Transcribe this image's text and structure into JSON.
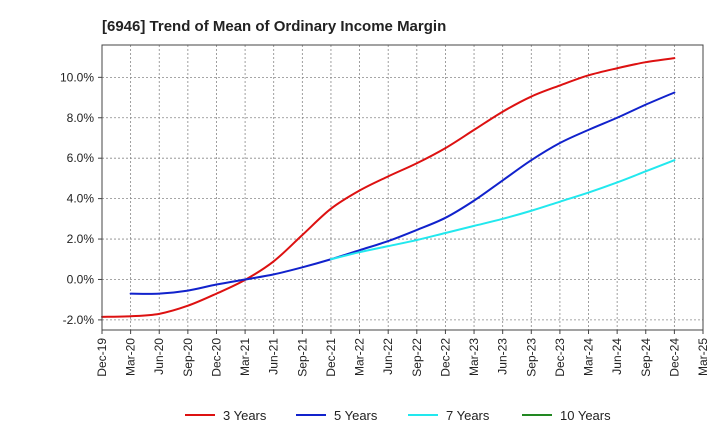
{
  "chart_data": {
    "type": "line",
    "title": "[6946]  Trend of Mean of Ordinary Income Margin",
    "xlabel": "",
    "ylabel": "",
    "ylim": [
      -2.5,
      11.6
    ],
    "grid": true,
    "legend_position": "bottom",
    "x": [
      "Dec-19",
      "Mar-20",
      "Jun-20",
      "Sep-20",
      "Dec-20",
      "Mar-21",
      "Jun-21",
      "Sep-21",
      "Dec-21",
      "Mar-22",
      "Jun-22",
      "Sep-22",
      "Dec-22",
      "Mar-23",
      "Jun-23",
      "Sep-23",
      "Dec-23",
      "Mar-24",
      "Jun-24",
      "Sep-24",
      "Dec-24",
      "Mar-25"
    ],
    "y_ticks": [
      -2.0,
      0.0,
      2.0,
      4.0,
      6.0,
      8.0,
      10.0
    ],
    "y_tick_labels": [
      "-2.0%",
      "0.0%",
      "2.0%",
      "4.0%",
      "6.0%",
      "8.0%",
      "10.0%"
    ],
    "series": [
      {
        "name": "3 Years",
        "color": "#dd1111",
        "values": [
          -1.85,
          -1.82,
          -1.7,
          -1.3,
          -0.7,
          -0.02,
          0.9,
          2.2,
          3.5,
          4.4,
          5.1,
          5.75,
          6.5,
          7.4,
          8.3,
          9.05,
          9.6,
          10.1,
          10.45,
          10.75,
          10.95,
          null
        ]
      },
      {
        "name": "5 Years",
        "color": "#1122cc",
        "values": [
          null,
          -0.7,
          -0.7,
          -0.55,
          -0.25,
          0.0,
          0.25,
          0.6,
          1.0,
          1.45,
          1.9,
          2.45,
          3.05,
          3.9,
          4.9,
          5.9,
          6.75,
          7.4,
          8.0,
          8.65,
          9.25,
          null
        ]
      },
      {
        "name": "7 Years",
        "color": "#22e8ee",
        "values": [
          null,
          null,
          null,
          null,
          null,
          null,
          null,
          null,
          1.0,
          1.35,
          1.65,
          1.95,
          2.3,
          2.65,
          3.0,
          3.4,
          3.85,
          4.3,
          4.8,
          5.35,
          5.9,
          null
        ]
      },
      {
        "name": "10 Years",
        "color": "#228822",
        "values": [
          null,
          null,
          null,
          null,
          null,
          null,
          null,
          null,
          null,
          null,
          null,
          null,
          null,
          null,
          null,
          null,
          null,
          null,
          null,
          null,
          null,
          null
        ]
      }
    ]
  }
}
